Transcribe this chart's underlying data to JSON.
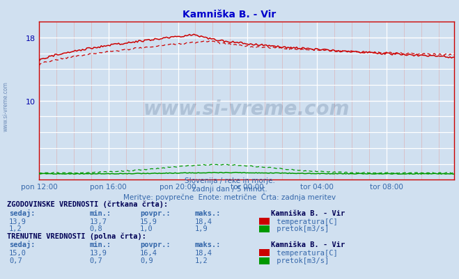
{
  "title": "Kamniška B. - Vir",
  "bg_color": "#d0e0f0",
  "plot_bg_color": "#d0e0f0",
  "title_color": "#0000cc",
  "axis_color": "#0000aa",
  "text_color": "#2244aa",
  "label_color": "#3366aa",
  "figsize": [
    6.59,
    4.02
  ],
  "dpi": 100,
  "ylim_temp": [
    0,
    20
  ],
  "ytick_vals": [
    10,
    18
  ],
  "xtick_labels": [
    "pon 12:00",
    "pon 16:00",
    "pon 20:00",
    "tor 00:00",
    "tor 04:00",
    "tor 08:00"
  ],
  "subtitle1": "Slovenija / reke in morje.",
  "subtitle2": "zadnji dan / 5 minut.",
  "subtitle3": "Meritve: povprečne  Enote: metrične  Črta: zadnja meritev",
  "watermark": "www.si-vreme.com",
  "temp_color": "#cc0000",
  "flow_color": "#009900",
  "hist_section_title": "ZGODOVINSKE VREDNOSTI (črtkana črta):",
  "curr_section_title": "TRENUTNE VREDNOSTI (polna črta):",
  "col_headers": [
    "sedaj:",
    "min.:",
    "povpr.:",
    "maks.:",
    "Kamniška B. - Vir"
  ],
  "hist_temp": {
    "sedaj": "13,9",
    "min": "13,7",
    "povpr": "15,9",
    "maks": "18,4",
    "label": "temperatura[C]",
    "color": "#cc0000"
  },
  "hist_flow": {
    "sedaj": "1,2",
    "min": "0,8",
    "povpr": "1,0",
    "maks": "1,9",
    "label": "pretok[m3/s]",
    "color": "#009900"
  },
  "curr_temp": {
    "sedaj": "15,0",
    "min": "13,9",
    "povpr": "16,4",
    "maks": "18,4",
    "label": "temperatura[C]",
    "color": "#cc0000"
  },
  "curr_flow": {
    "sedaj": "0,7",
    "min": "0,7",
    "povpr": "0,9",
    "maks": "1,2",
    "label": "pretok[m3/s]",
    "color": "#009900"
  },
  "n_points": 288
}
